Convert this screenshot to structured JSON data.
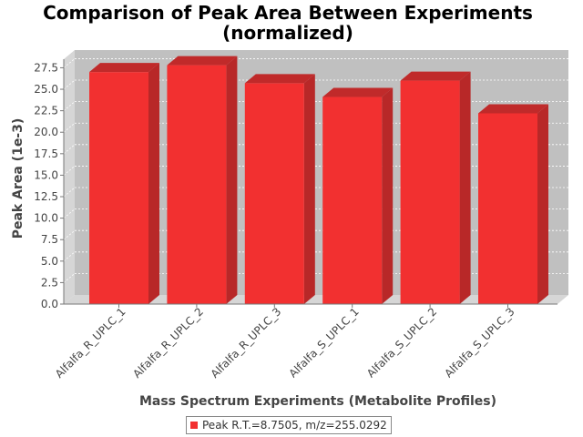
{
  "chart_data": {
    "type": "bar",
    "title": [
      "Comparison of Peak Area Between Experiments",
      "(normalized)"
    ],
    "xlabel": "Mass Spectrum Experiments (Metabolite Profiles)",
    "ylabel": "Peak Area (1e-3)",
    "categories": [
      "Alfalfa_R_UPLC_1",
      "Alfalfa_R_UPLC_2",
      "Alfalfa_R_UPLC_3",
      "Alfalfa_S_UPLC_1",
      "Alfalfa_S_UPLC_2",
      "Alfalfa_S_UPLC_3"
    ],
    "series": [
      {
        "name": "Peak R.T.=8.7505, m/z=255.0292",
        "values": [
          27.0,
          27.8,
          25.7,
          24.1,
          26.0,
          22.2
        ]
      }
    ],
    "ylim": [
      0,
      28.5
    ],
    "yticks": [
      0.0,
      2.5,
      5.0,
      7.5,
      10.0,
      12.5,
      15.0,
      17.5,
      20.0,
      22.5,
      25.0,
      27.5
    ],
    "grid": true,
    "legend": "bottom",
    "colors": {
      "bar": "#f23030",
      "bar_side": "#b82828",
      "bar_top": "#c02a2a",
      "plot_bg": "#c0c0c0",
      "wall": "#d6d6d6"
    }
  }
}
